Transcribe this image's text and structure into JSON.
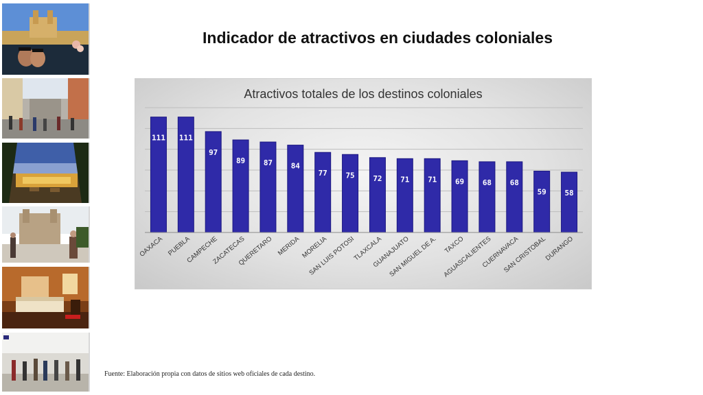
{
  "title": "Indicador de atractivos en ciudades coloniales",
  "source_note": "Fuente: Elaboración propia con datos de sitios web oficiales de cada destino.",
  "photo_strip": [
    {
      "name": "photo-rooftop-pool-cathedral"
    },
    {
      "name": "photo-pedestrian-street"
    },
    {
      "name": "photo-hotel-terrace-sunset"
    },
    {
      "name": "photo-church-plaza-tourists"
    },
    {
      "name": "photo-hotel-room"
    },
    {
      "name": "photo-crowd-walkway"
    }
  ],
  "colors": {
    "bar_fill": "#2f2aa8",
    "bar_edge": "#1c1880",
    "label_text": "#ffffff"
  },
  "chart_data": {
    "type": "bar",
    "title": "Atractivos totales de los destinos coloniales",
    "categories": [
      "OAXACA",
      "PUEBLA",
      "CAMPECHE",
      "ZACATECAS",
      "QUERETARO",
      "MERIDA",
      "MORELIA",
      "SAN LUIS POTOSI",
      "TLAXCALA",
      "GUANAJUATO",
      "SAN MIGUEL DE A.",
      "TAXCO",
      "AGUASCALIENTES",
      "CUERNAVACA",
      "SAN CRISTOBAL",
      "DURANGO"
    ],
    "values": [
      111,
      111,
      97,
      89,
      87,
      84,
      77,
      75,
      72,
      71,
      71,
      69,
      68,
      68,
      59,
      58
    ],
    "ylim": [
      0,
      120
    ],
    "grid": true,
    "legend": false
  }
}
